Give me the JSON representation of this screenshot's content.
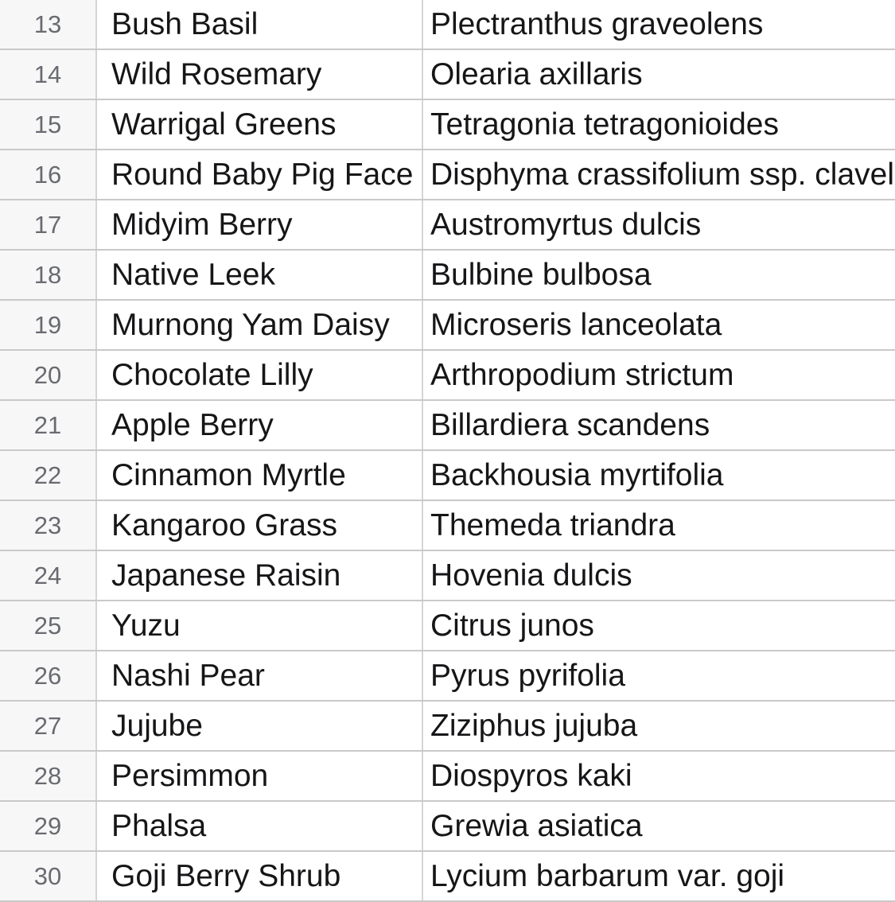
{
  "app": {
    "view": "spreadsheet-grid",
    "visible_row_range": "13-30"
  },
  "colors": {
    "row_header_bg": "#f7f7f8",
    "grid_horizontal": "#c9c9c9",
    "grid_vertical": "#d5d5d5",
    "row_number_text": "#696b70",
    "cell_text": "#161618",
    "cell_bg": "#ffffff"
  },
  "table": {
    "columns": [
      {
        "id": "num",
        "role": "row-number-header"
      },
      {
        "id": "common",
        "role": "common-name"
      },
      {
        "id": "scientific",
        "role": "scientific-name"
      }
    ],
    "rows": [
      {
        "num": "13",
        "common": "Bush Basil",
        "scientific": "Plectranthus graveolens"
      },
      {
        "num": "14",
        "common": "Wild Rosemary",
        "scientific": "Olearia axillaris"
      },
      {
        "num": "15",
        "common": "Warrigal Greens",
        "scientific": "Tetragonia tetragonioides"
      },
      {
        "num": "16",
        "common": "Round Baby Pig Face",
        "scientific": "Disphyma crassifolium ssp. clavel"
      },
      {
        "num": "17",
        "common": "Midyim Berry",
        "scientific": "Austromyrtus dulcis"
      },
      {
        "num": "18",
        "common": "Native Leek",
        "scientific": "Bulbine bulbosa"
      },
      {
        "num": "19",
        "common": "Murnong Yam Daisy",
        "scientific": "Microseris lanceolata"
      },
      {
        "num": "20",
        "common": "Chocolate Lilly",
        "scientific": "Arthropodium strictum"
      },
      {
        "num": "21",
        "common": "Apple Berry",
        "scientific": "Billardiera scandens"
      },
      {
        "num": "22",
        "common": "Cinnamon Myrtle",
        "scientific": "Backhousia myrtifolia"
      },
      {
        "num": "23",
        "common": "Kangaroo Grass",
        "scientific": "Themeda triandra"
      },
      {
        "num": "24",
        "common": "Japanese Raisin",
        "scientific": "Hovenia dulcis"
      },
      {
        "num": "25",
        "common": "Yuzu",
        "scientific": "Citrus junos"
      },
      {
        "num": "26",
        "common": "Nashi Pear",
        "scientific": "Pyrus pyrifolia"
      },
      {
        "num": "27",
        "common": "Jujube",
        "scientific": "Ziziphus jujuba"
      },
      {
        "num": "28",
        "common": "Persimmon",
        "scientific": "Diospyros kaki"
      },
      {
        "num": "29",
        "common": "Phalsa",
        "scientific": "Grewia asiatica"
      },
      {
        "num": "30",
        "common": "Goji Berry Shrub",
        "scientific": "Lycium barbarum var. goji"
      }
    ]
  }
}
